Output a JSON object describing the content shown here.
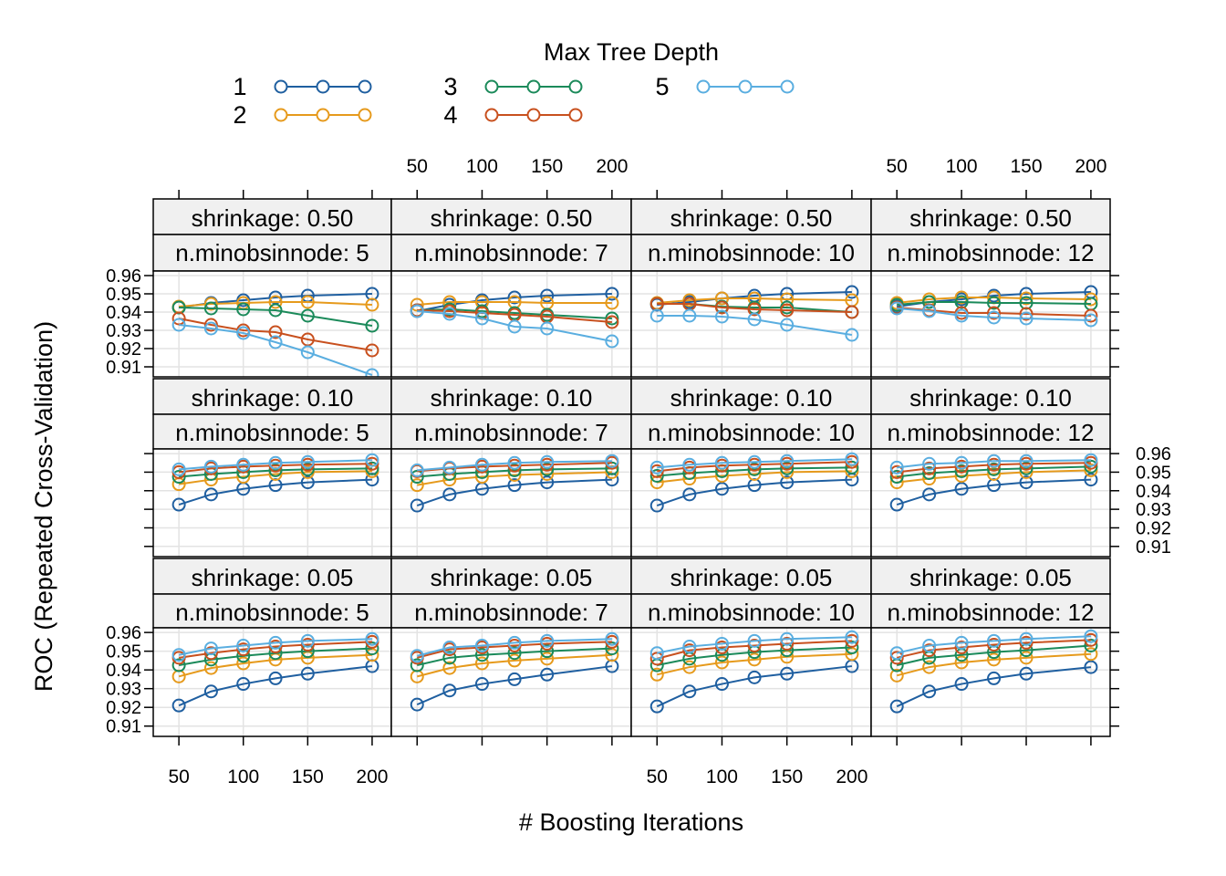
{
  "chart_data": {
    "type": "line",
    "x_label": "# Boosting Iterations",
    "y_label": "ROC (Repeated Cross-Validation)",
    "legend": {
      "title": "Max Tree Depth",
      "entries": [
        "1",
        "2",
        "3",
        "4",
        "5"
      ],
      "placement": "top"
    },
    "colors": {
      "1": "#1f5fa0",
      "2": "#e69a1c",
      "3": "#1b8a5a",
      "4": "#c8501e",
      "5": "#5aaee0"
    },
    "x": [
      50,
      75,
      100,
      125,
      150,
      200
    ],
    "x_ticks": [
      "50",
      "100",
      "150",
      "200"
    ],
    "x_tick_values": [
      50,
      100,
      150,
      200
    ],
    "y_ticks": [
      "0.91",
      "0.92",
      "0.93",
      "0.94",
      "0.95",
      "0.96"
    ],
    "y_tick_values": [
      0.91,
      0.92,
      0.93,
      0.94,
      0.95,
      0.96
    ],
    "xlim": [
      40,
      205
    ],
    "ylim": [
      0.9045,
      0.9625
    ],
    "grid": true,
    "panels": [
      {
        "strip1": "shrinkage: 0.50",
        "strip2": "n.minobsinnode:  5",
        "series": [
          {
            "name": "1",
            "values": [
              0.9425,
              0.945,
              0.9465,
              0.948,
              0.949,
              0.95
            ]
          },
          {
            "name": "2",
            "values": [
              0.943,
              0.9445,
              0.945,
              0.9455,
              0.9455,
              0.944
            ]
          },
          {
            "name": "3",
            "values": [
              0.9425,
              0.942,
              0.9415,
              0.941,
              0.938,
              0.9325
            ]
          },
          {
            "name": "4",
            "values": [
              0.9365,
              0.933,
              0.93,
              0.929,
              0.925,
              0.919
            ]
          },
          {
            "name": "5",
            "values": [
              0.933,
              0.931,
              0.9285,
              0.9235,
              0.918,
              0.9055
            ]
          }
        ]
      },
      {
        "strip1": "shrinkage: 0.50",
        "strip2": "n.minobsinnode:  7",
        "series": [
          {
            "name": "1",
            "values": [
              0.9405,
              0.944,
              0.9465,
              0.948,
              0.949,
              0.95
            ]
          },
          {
            "name": "2",
            "values": [
              0.944,
              0.9455,
              0.9455,
              0.9455,
              0.945,
              0.945
            ]
          },
          {
            "name": "3",
            "values": [
              0.941,
              0.9415,
              0.9405,
              0.9395,
              0.9385,
              0.9365
            ]
          },
          {
            "name": "4",
            "values": [
              0.941,
              0.9405,
              0.9395,
              0.9385,
              0.9375,
              0.9345
            ]
          },
          {
            "name": "5",
            "values": [
              0.9405,
              0.939,
              0.9365,
              0.932,
              0.931,
              0.924
            ]
          }
        ]
      },
      {
        "strip1": "shrinkage: 0.50",
        "strip2": "n.minobsinnode: 10",
        "series": [
          {
            "name": "1",
            "values": [
              0.944,
              0.9455,
              0.9475,
              0.949,
              0.95,
              0.951
            ]
          },
          {
            "name": "2",
            "values": [
              0.945,
              0.9465,
              0.9475,
              0.9475,
              0.947,
              0.9465
            ]
          },
          {
            "name": "3",
            "values": [
              0.9445,
              0.9445,
              0.943,
              0.9425,
              0.9425,
              0.94
            ]
          },
          {
            "name": "4",
            "values": [
              0.9445,
              0.9445,
              0.9425,
              0.9415,
              0.941,
              0.94
            ]
          },
          {
            "name": "5",
            "values": [
              0.938,
              0.938,
              0.9375,
              0.936,
              0.933,
              0.9275
            ]
          }
        ]
      },
      {
        "strip1": "shrinkage: 0.50",
        "strip2": "n.minobsinnode: 12",
        "series": [
          {
            "name": "1",
            "values": [
              0.943,
              0.9455,
              0.947,
              0.949,
              0.95,
              0.951
            ]
          },
          {
            "name": "2",
            "values": [
              0.945,
              0.947,
              0.948,
              0.948,
              0.9475,
              0.947
            ]
          },
          {
            "name": "3",
            "values": [
              0.944,
              0.9455,
              0.9455,
              0.945,
              0.945,
              0.9445
            ]
          },
          {
            "name": "4",
            "values": [
              0.9425,
              0.941,
              0.9395,
              0.9395,
              0.939,
              0.938
            ]
          },
          {
            "name": "5",
            "values": [
              0.942,
              0.9405,
              0.938,
              0.937,
              0.9365,
              0.9355
            ]
          }
        ]
      },
      {
        "strip1": "shrinkage: 0.10",
        "strip2": "n.minobsinnode:  5",
        "series": [
          {
            "name": "1",
            "values": [
              0.9325,
              0.938,
              0.941,
              0.943,
              0.9445,
              0.946
            ]
          },
          {
            "name": "2",
            "values": [
              0.9435,
              0.946,
              0.9475,
              0.949,
              0.95,
              0.9505
            ]
          },
          {
            "name": "3",
            "values": [
              0.9475,
              0.949,
              0.95,
              0.951,
              0.9515,
              0.952
            ]
          },
          {
            "name": "4",
            "values": [
              0.95,
              0.952,
              0.953,
              0.9535,
              0.954,
              0.9545
            ]
          },
          {
            "name": "5",
            "values": [
              0.9515,
              0.953,
              0.954,
              0.955,
              0.9555,
              0.9565
            ]
          }
        ]
      },
      {
        "strip1": "shrinkage: 0.10",
        "strip2": "n.minobsinnode:  7",
        "series": [
          {
            "name": "1",
            "values": [
              0.932,
              0.938,
              0.941,
              0.943,
              0.9445,
              0.946
            ]
          },
          {
            "name": "2",
            "values": [
              0.943,
              0.946,
              0.9475,
              0.9485,
              0.949,
              0.95
            ]
          },
          {
            "name": "3",
            "values": [
              0.9475,
              0.949,
              0.95,
              0.951,
              0.9515,
              0.952
            ]
          },
          {
            "name": "4",
            "values": [
              0.9505,
              0.952,
              0.953,
              0.9535,
              0.954,
              0.955
            ]
          },
          {
            "name": "5",
            "values": [
              0.951,
              0.9525,
              0.954,
              0.955,
              0.9555,
              0.956
            ]
          }
        ]
      },
      {
        "strip1": "shrinkage: 0.10",
        "strip2": "n.minobsinnode: 10",
        "series": [
          {
            "name": "1",
            "values": [
              0.932,
              0.938,
              0.941,
              0.943,
              0.9445,
              0.946
            ]
          },
          {
            "name": "2",
            "values": [
              0.9445,
              0.9465,
              0.948,
              0.949,
              0.95,
              0.9505
            ]
          },
          {
            "name": "3",
            "values": [
              0.948,
              0.9495,
              0.9505,
              0.9515,
              0.952,
              0.9525
            ]
          },
          {
            "name": "4",
            "values": [
              0.9505,
              0.9525,
              0.9535,
              0.954,
              0.9545,
              0.9555
            ]
          },
          {
            "name": "5",
            "values": [
              0.9525,
              0.954,
              0.955,
              0.9555,
              0.956,
              0.957
            ]
          }
        ]
      },
      {
        "strip1": "shrinkage: 0.10",
        "strip2": "n.minobsinnode: 12",
        "series": [
          {
            "name": "1",
            "values": [
              0.9325,
              0.938,
              0.941,
              0.943,
              0.9445,
              0.946
            ]
          },
          {
            "name": "2",
            "values": [
              0.9445,
              0.9465,
              0.948,
              0.949,
              0.95,
              0.951
            ]
          },
          {
            "name": "3",
            "values": [
              0.9475,
              0.9495,
              0.9505,
              0.9515,
              0.952,
              0.953
            ]
          },
          {
            "name": "4",
            "values": [
              0.95,
              0.952,
              0.953,
              0.954,
              0.9545,
              0.955
            ]
          },
          {
            "name": "5",
            "values": [
              0.9525,
              0.9545,
              0.955,
              0.956,
              0.956,
              0.9565
            ]
          }
        ]
      },
      {
        "strip1": "shrinkage: 0.05",
        "strip2": "n.minobsinnode:  5",
        "series": [
          {
            "name": "1",
            "values": [
              0.921,
              0.9285,
              0.9325,
              0.9355,
              0.938,
              0.942
            ]
          },
          {
            "name": "2",
            "values": [
              0.9365,
              0.941,
              0.9435,
              0.9455,
              0.9465,
              0.948
            ]
          },
          {
            "name": "3",
            "values": [
              0.9425,
              0.9455,
              0.9475,
              0.949,
              0.95,
              0.9515
            ]
          },
          {
            "name": "4",
            "values": [
              0.9465,
              0.949,
              0.951,
              0.9525,
              0.9535,
              0.955
            ]
          },
          {
            "name": "5",
            "values": [
              0.948,
              0.9515,
              0.953,
              0.9545,
              0.9555,
              0.9565
            ]
          }
        ]
      },
      {
        "strip1": "shrinkage: 0.05",
        "strip2": "n.minobsinnode:  7",
        "series": [
          {
            "name": "1",
            "values": [
              0.9215,
              0.929,
              0.9325,
              0.935,
              0.9375,
              0.942
            ]
          },
          {
            "name": "2",
            "values": [
              0.9365,
              0.941,
              0.9435,
              0.945,
              0.946,
              0.948
            ]
          },
          {
            "name": "3",
            "values": [
              0.9425,
              0.9465,
              0.948,
              0.949,
              0.95,
              0.9515
            ]
          },
          {
            "name": "4",
            "values": [
              0.9465,
              0.951,
              0.952,
              0.953,
              0.954,
              0.955
            ]
          },
          {
            "name": "5",
            "values": [
              0.9475,
              0.952,
              0.953,
              0.9545,
              0.9555,
              0.9565
            ]
          }
        ]
      },
      {
        "strip1": "shrinkage: 0.05",
        "strip2": "n.minobsinnode: 10",
        "series": [
          {
            "name": "1",
            "values": [
              0.9205,
              0.9285,
              0.9325,
              0.936,
              0.938,
              0.942
            ]
          },
          {
            "name": "2",
            "values": [
              0.9375,
              0.9415,
              0.944,
              0.9455,
              0.947,
              0.9485
            ]
          },
          {
            "name": "3",
            "values": [
              0.9425,
              0.946,
              0.948,
              0.9495,
              0.9505,
              0.952
            ]
          },
          {
            "name": "4",
            "values": [
              0.946,
              0.9505,
              0.952,
              0.953,
              0.954,
              0.9555
            ]
          },
          {
            "name": "5",
            "values": [
              0.949,
              0.9525,
              0.954,
              0.9555,
              0.9565,
              0.9575
            ]
          }
        ]
      },
      {
        "strip1": "shrinkage: 0.05",
        "strip2": "n.minobsinnode: 12",
        "series": [
          {
            "name": "1",
            "values": [
              0.9205,
              0.9285,
              0.9325,
              0.9355,
              0.938,
              0.9415
            ]
          },
          {
            "name": "2",
            "values": [
              0.937,
              0.9415,
              0.944,
              0.9455,
              0.9465,
              0.9485
            ]
          },
          {
            "name": "3",
            "values": [
              0.9425,
              0.9465,
              0.948,
              0.9495,
              0.9505,
              0.953
            ]
          },
          {
            "name": "4",
            "values": [
              0.9465,
              0.9505,
              0.952,
              0.9535,
              0.9545,
              0.956
            ]
          },
          {
            "name": "5",
            "values": [
              0.949,
              0.953,
              0.9545,
              0.9555,
              0.9565,
              0.958
            ]
          }
        ]
      }
    ]
  }
}
